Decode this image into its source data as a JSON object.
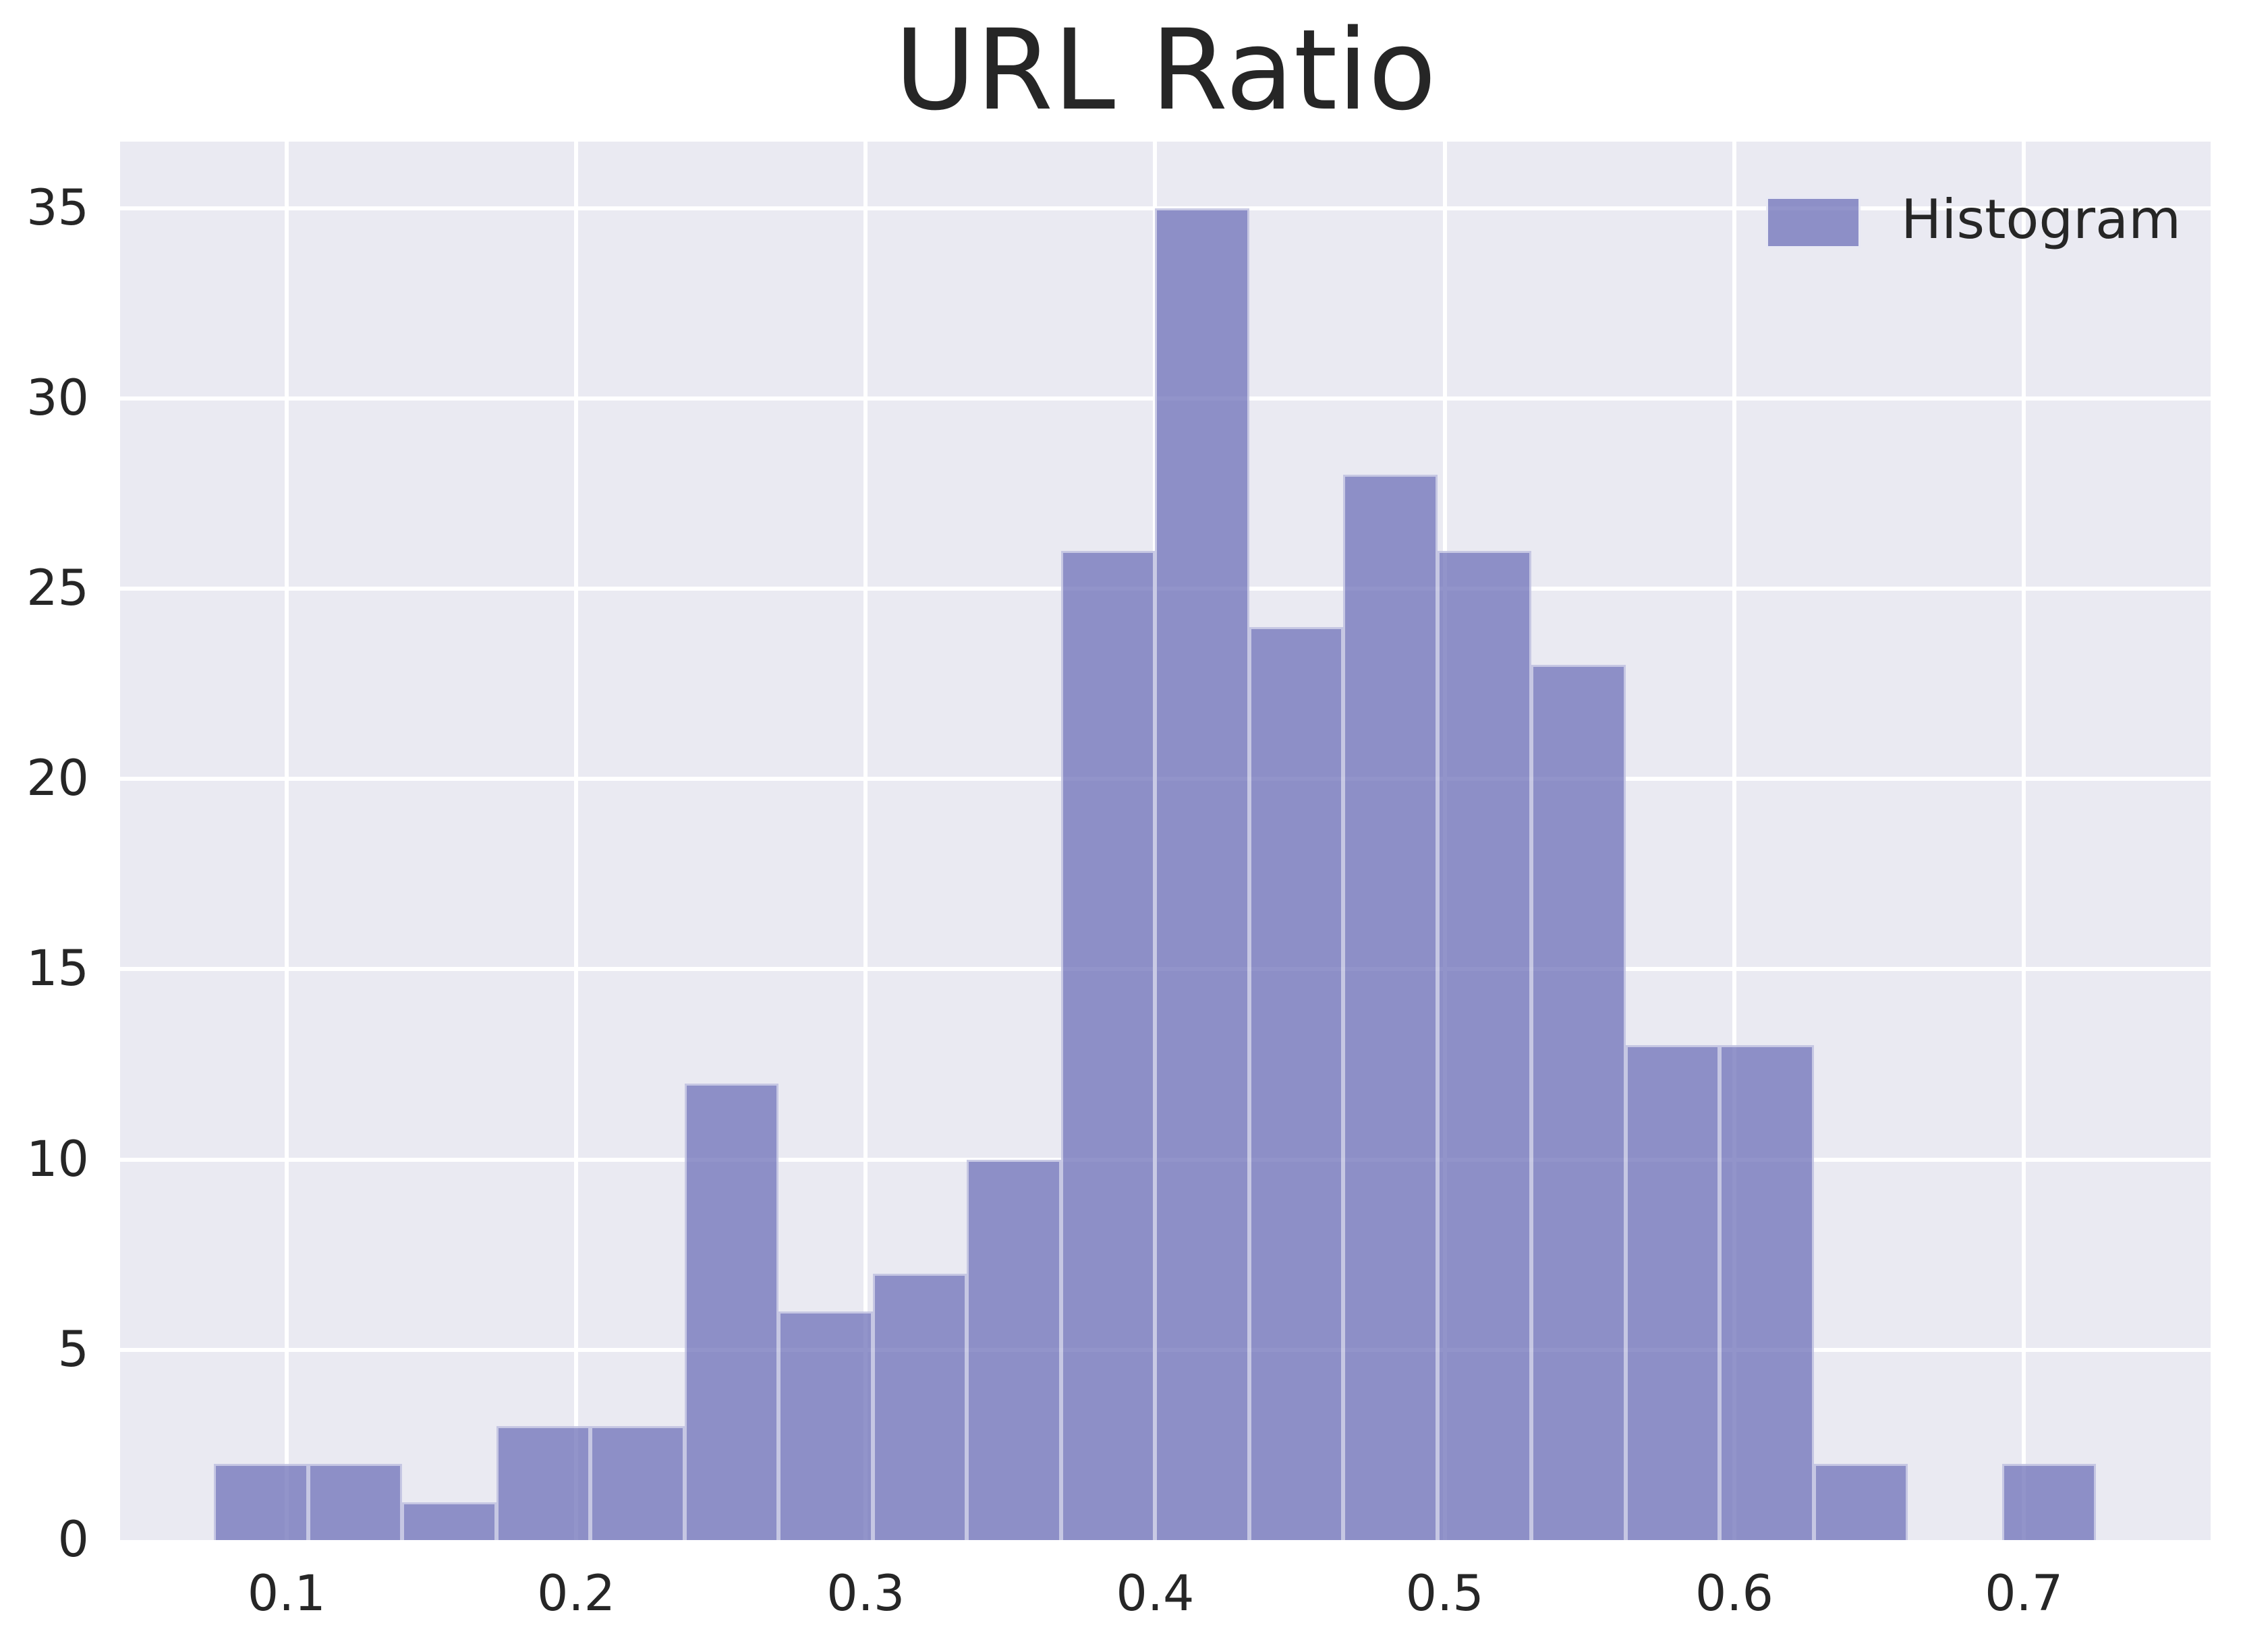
{
  "chart_data": {
    "type": "histogram",
    "title": "URL Ratio",
    "xlabel": "",
    "ylabel": "",
    "series": [
      {
        "name": "Histogram",
        "bin_edges": [
          0.075,
          0.1075,
          0.14,
          0.1725,
          0.205,
          0.2375,
          0.27,
          0.3025,
          0.335,
          0.3675,
          0.4,
          0.4325,
          0.465,
          0.4975,
          0.53,
          0.5625,
          0.595,
          0.6275,
          0.66,
          0.6925,
          0.725
        ],
        "counts": [
          2,
          2,
          1,
          3,
          3,
          12,
          6,
          7,
          10,
          26,
          35,
          24,
          28,
          26,
          23,
          13,
          13,
          2,
          0,
          2
        ]
      }
    ],
    "x_ticks": [
      0.1,
      0.2,
      0.3,
      0.4,
      0.5,
      0.6,
      0.7
    ],
    "x_tick_labels": [
      "0.1",
      "0.2",
      "0.3",
      "0.4",
      "0.5",
      "0.6",
      "0.7"
    ],
    "y_ticks": [
      0,
      5,
      10,
      15,
      20,
      25,
      30,
      35
    ],
    "y_tick_labels": [
      "0",
      "5",
      "10",
      "15",
      "20",
      "25",
      "30",
      "35"
    ],
    "xlim": [
      0.0425,
      0.7645
    ],
    "ylim": [
      0,
      36.75
    ],
    "grid": true,
    "legend": {
      "labels": [
        "Histogram"
      ],
      "position": "upper-right"
    },
    "colors": {
      "bar_fill": "#6E70B8",
      "bar_fill_alpha": 0.75,
      "bar_edge": "rgba(255,255,255,0.50)",
      "plot_background": "#eaeaf2",
      "gridline": "#ffffff",
      "text": "#262626",
      "figure_background": "#ffffff"
    }
  }
}
